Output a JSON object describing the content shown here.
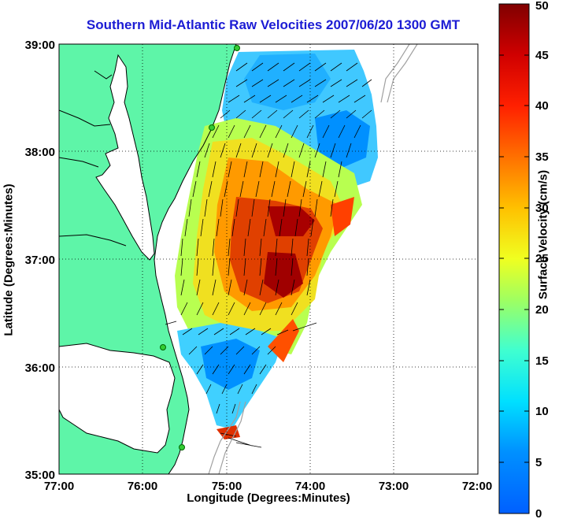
{
  "title": "Southern Mid-Atlantic Raw Velocities 2007/06/20 1300 GMT",
  "xlabel": "Longitude (Degrees:Minutes)",
  "ylabel": "Latitude (Degrees:Minutes)",
  "colorbar_label": "Surface Velocity (cm/s)",
  "x_ticks": [
    "77:00",
    "76:00",
    "75:00",
    "74:00",
    "73:00",
    "72:00"
  ],
  "y_ticks": [
    "39:00",
    "38:00",
    "37:00",
    "36:00",
    "35:00"
  ],
  "colorbar_ticks": [
    "0",
    "5",
    "10",
    "15",
    "20",
    "25",
    "30",
    "35",
    "40",
    "45",
    "50"
  ],
  "colors": {
    "land": "#5ef5a8",
    "title": "#1c1cd4",
    "coast": "#000000",
    "bathymetry": "#a0a0a0",
    "station": "#33cc33"
  },
  "chart_data": {
    "type": "heatmap",
    "title": "Southern Mid-Atlantic Raw Velocities 2007/06/20 1300 GMT",
    "xlabel": "Longitude (Degrees:Minutes)",
    "ylabel": "Latitude (Degrees:Minutes)",
    "xlim": [
      "77:00",
      "72:00"
    ],
    "ylim": [
      "35:00",
      "39:00"
    ],
    "colorbar": {
      "label": "Surface Velocity (cm/s)",
      "range": [
        0,
        50
      ],
      "colormap": "jet"
    },
    "grid": true
  }
}
